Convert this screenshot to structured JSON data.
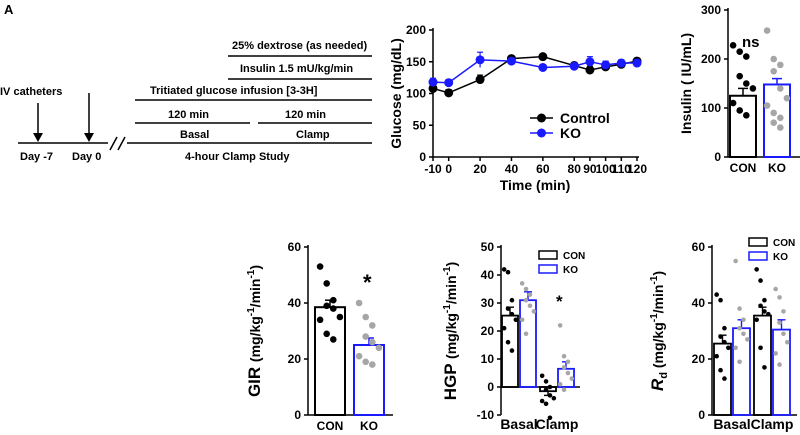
{
  "panel_label": "A",
  "schematic": {
    "dextrose_label": "25% dextrose (as needed)",
    "insulin_label": "Insulin 1.5 mU/kg/min",
    "tritiated_label": "Tritiated glucose infusion [3-3H]",
    "basal_duration": "120 min",
    "clamp_duration": "120 min",
    "basal_label": "Basal",
    "clamp_label": "Clamp",
    "catheter_label": "IV catheters",
    "day_minus7": "Day -7",
    "day_0": "Day 0",
    "study_label": "4-hour Clamp Study"
  },
  "colors": {
    "control": "#000000",
    "ko": "#1a1aff",
    "ko_dots": "#a6a6a6"
  },
  "chart_data": [
    {
      "id": "glucose",
      "type": "line",
      "ylabel": "Glucose (mg/dL)",
      "xlabel": "Time (min)",
      "xlim": [
        -10,
        120
      ],
      "ylim": [
        0,
        200
      ],
      "xticks": [
        -10,
        0,
        20,
        40,
        60,
        80,
        90,
        100,
        110,
        120
      ],
      "yticks": [
        0,
        50,
        100,
        150,
        200
      ],
      "legend": "bottom-right",
      "x": [
        -10,
        0,
        20,
        40,
        60,
        80,
        90,
        100,
        110,
        120
      ],
      "series": [
        {
          "name": "Control",
          "values": [
            108,
            101,
            122,
            155,
            158,
            144,
            137,
            142,
            146,
            151
          ],
          "err": [
            8,
            5,
            7,
            3,
            3,
            5,
            6,
            5,
            4,
            4
          ]
        },
        {
          "name": "KO",
          "values": [
            118,
            117,
            153,
            151,
            141,
            143,
            150,
            145,
            148,
            148
          ],
          "err": [
            6,
            5,
            12,
            4,
            3,
            5,
            8,
            6,
            5,
            5
          ]
        }
      ]
    },
    {
      "id": "insulin",
      "type": "bar",
      "ylabel": "Insulin (  IU/mL)",
      "ylim": [
        0,
        300
      ],
      "yticks": [
        0,
        100,
        200,
        300
      ],
      "categories": [
        "CON",
        "KO"
      ],
      "values": [
        125,
        148
      ],
      "err": [
        15,
        12
      ],
      "annotation": "ns",
      "points": [
        [
          228,
          215,
          205,
          165,
          150,
          140,
          110,
          95,
          85
        ],
        [
          258,
          200,
          188,
          175,
          140,
          120,
          105,
          90,
          80,
          70,
          60
        ]
      ]
    },
    {
      "id": "gir",
      "type": "bar",
      "ylabel": "GIR (mg/kg-1/min-1)",
      "ylabel_main": "GIR ",
      "ylabel_unit": "(mg/kg",
      "ylabel_sup1": "-1",
      "ylabel_mid": "/min",
      "ylabel_sup2": "-1",
      "ylabel_end": ")",
      "ylim": [
        0,
        60
      ],
      "yticks": [
        0,
        20,
        40,
        60
      ],
      "categories": [
        "CON",
        "KO"
      ],
      "values": [
        38.5,
        25
      ],
      "err": [
        2.5,
        2.5
      ],
      "annotation": "*",
      "points": [
        [
          53,
          47,
          41,
          39,
          38,
          35,
          34,
          29,
          27
        ],
        [
          40,
          35,
          32,
          28,
          26,
          24,
          21,
          19,
          18
        ]
      ]
    },
    {
      "id": "hgp",
      "type": "bar",
      "ylabel": "HGP (mg/kg-1/min-1)",
      "ylabel_main": "HGP ",
      "ylabel_unit": "(mg/kg",
      "ylabel_sup1": "-1",
      "ylabel_mid": "/min",
      "ylabel_sup2": "-1",
      "ylabel_end": ")",
      "ylim": [
        -10,
        50
      ],
      "yticks": [
        -10,
        0,
        10,
        20,
        30,
        40,
        50
      ],
      "categories": [
        "Basal",
        "Clamp"
      ],
      "legend": [
        "CON",
        "KO"
      ],
      "series": [
        {
          "name": "CON",
          "values": [
            25.5,
            -1.5
          ],
          "err": [
            3,
            1.5
          ],
          "points": [
            [
              42,
              41,
              31,
              28,
              26,
              24,
              21,
              16,
              13
            ],
            [
              4,
              2,
              0,
              -1,
              -3,
              -4,
              -5,
              -6,
              -11
            ]
          ]
        },
        {
          "name": "KO",
          "values": [
            31,
            6.5
          ],
          "err": [
            3,
            2.5
          ],
          "points": [
            [
              37,
              35,
              33,
              31,
              29,
              27,
              24,
              19
            ],
            [
              22,
              11,
              9,
              7,
              5,
              3,
              1,
              -1
            ]
          ]
        }
      ],
      "annotation": "*"
    },
    {
      "id": "rd",
      "type": "bar",
      "ylabel": "Rd (mg/kg-1/min-1)",
      "ylabel_main": "R",
      "ylabel_sub": "d",
      "ylabel_unit": " (mg/kg",
      "ylabel_sup1": "-1",
      "ylabel_mid": "/min",
      "ylabel_sup2": "-1",
      "ylabel_end": ")",
      "ylim": [
        0,
        60
      ],
      "yticks": [
        0,
        20,
        40,
        60
      ],
      "categories": [
        "Basal",
        "Clamp"
      ],
      "legend": [
        "CON",
        "KO"
      ],
      "series": [
        {
          "name": "CON",
          "values": [
            25.5,
            35.5
          ],
          "err": [
            3,
            3
          ],
          "points": [
            [
              43,
              41,
              31,
              28,
              26,
              24,
              21,
              16,
              13
            ],
            [
              52,
              48,
              41,
              39,
              37,
              36,
              34,
              24,
              17
            ]
          ]
        },
        {
          "name": "KO",
          "values": [
            31,
            30.5
          ],
          "err": [
            3,
            3.5
          ],
          "points": [
            [
              55,
              38,
              34,
              31,
              29,
              27,
              24,
              19
            ],
            [
              45,
              42,
              37,
              33,
              29,
              26,
              22,
              18
            ]
          ]
        }
      ]
    }
  ]
}
